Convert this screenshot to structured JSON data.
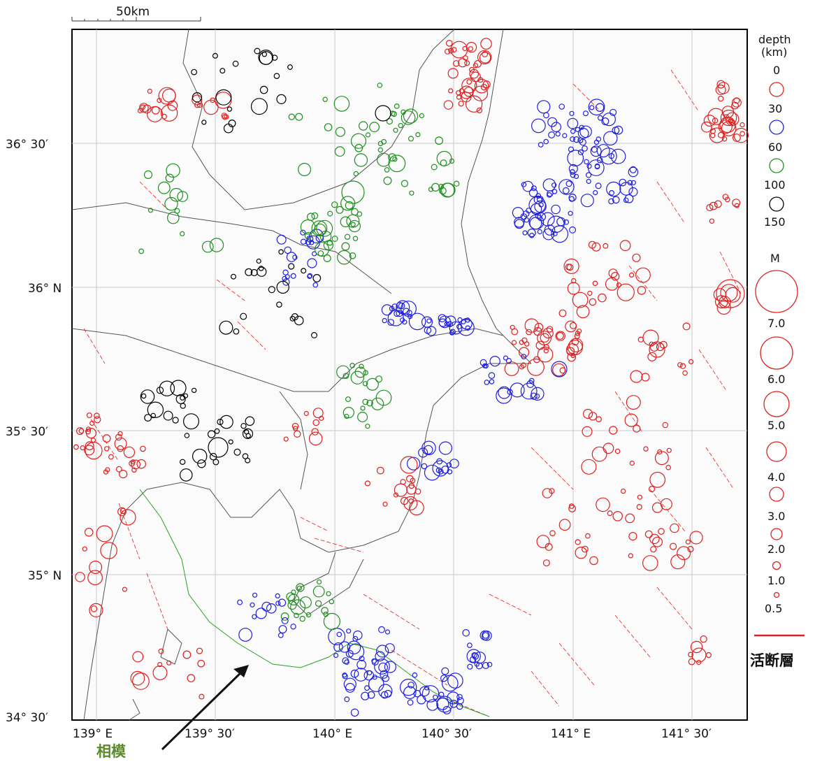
{
  "scale_bar": {
    "label": "50km"
  },
  "axes": {
    "lat_ticks": [
      "36° 30′",
      "36° N",
      "35° 30′",
      "35° N",
      "34° 30′"
    ],
    "lon_ticks": [
      "139° E",
      "139° 30′",
      "140° E",
      "140° 30′",
      "141° E",
      "141° 30′"
    ]
  },
  "legend": {
    "depth_title": "depth",
    "depth_unit": "(km)",
    "depth_bins": [
      {
        "label": "0",
        "color": "#e02020"
      },
      {
        "label": "30",
        "color": "#2020e0"
      },
      {
        "label": "60",
        "color": "#1f8f1f"
      },
      {
        "label": "100",
        "color": "#000000"
      },
      {
        "label": "150"
      }
    ],
    "mag_title": "M",
    "mag_levels": [
      "7.0",
      "6.0",
      "5.0",
      "4.0",
      "3.0",
      "2.0",
      "1.0",
      "0.5"
    ],
    "fault_label": "活断層",
    "fault_color": "#e02020"
  },
  "annotation": {
    "label": "相模",
    "label_color": "#5a8a2a"
  },
  "colors": {
    "shallow": "#e02020",
    "mid": "#2020e0",
    "deep": "#1f8f1f",
    "deepest": "#000000",
    "trough": "#2aa02a"
  }
}
